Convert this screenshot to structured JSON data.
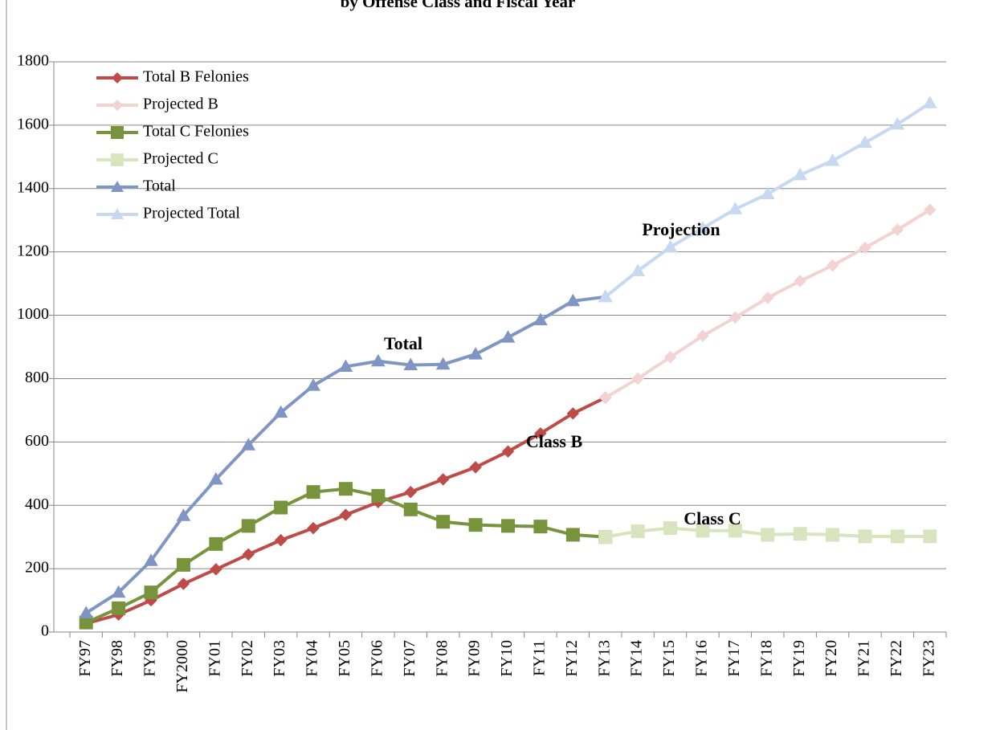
{
  "chart_data": {
    "type": "line",
    "title": "by Offense Class and Fiscal Year",
    "categories": [
      "FY97",
      "FY98",
      "FY99",
      "FY2000",
      "FY01",
      "FY02",
      "FY03",
      "FY04",
      "FY05",
      "FY06",
      "FY07",
      "FY08",
      "FY09",
      "FY10",
      "FY11",
      "FY12",
      "FY13",
      "FY14",
      "FY15",
      "FY16",
      "FY17",
      "FY18",
      "FY19",
      "FY20",
      "FY21",
      "FY22",
      "FY23"
    ],
    "ylim": [
      0,
      1800
    ],
    "yticks": [
      0,
      200,
      400,
      600,
      800,
      1000,
      1200,
      1400,
      1600,
      1800
    ],
    "grid": true,
    "legend": "top-left",
    "series": [
      {
        "name": "Total B Felonies",
        "color": "#be4b48",
        "marker": "diamond",
        "values": [
          27,
          55,
          100,
          152,
          198,
          245,
          290,
          328,
          370,
          410,
          442,
          482,
          520,
          570,
          627,
          690,
          740,
          null,
          null,
          null,
          null,
          null,
          null,
          null,
          null,
          null,
          null
        ]
      },
      {
        "name": "Projected B",
        "color": "#f2d3d2",
        "marker": "diamond",
        "values": [
          null,
          null,
          null,
          null,
          null,
          null,
          null,
          null,
          null,
          null,
          null,
          null,
          null,
          null,
          null,
          null,
          740,
          800,
          868,
          935,
          993,
          1055,
          1108,
          1157,
          1213,
          1270,
          1333
        ]
      },
      {
        "name": "Total C Felonies",
        "color": "#77933c",
        "marker": "square",
        "values": [
          30,
          75,
          125,
          212,
          278,
          335,
          393,
          442,
          452,
          430,
          387,
          348,
          338,
          335,
          333,
          307,
          300,
          null,
          null,
          null,
          null,
          null,
          null,
          null,
          null,
          null,
          null
        ]
      },
      {
        "name": "Projected C",
        "color": "#d7e4bd",
        "marker": "square",
        "values": [
          null,
          null,
          null,
          null,
          null,
          null,
          null,
          null,
          null,
          null,
          null,
          null,
          null,
          null,
          null,
          null,
          300,
          318,
          328,
          320,
          320,
          307,
          310,
          307,
          302,
          302,
          302
        ]
      },
      {
        "name": "Total",
        "color": "#7f96c4",
        "marker": "triangle",
        "values": [
          60,
          125,
          225,
          367,
          482,
          590,
          693,
          778,
          838,
          855,
          843,
          845,
          877,
          930,
          985,
          1045,
          1058,
          null,
          null,
          null,
          null,
          null,
          null,
          null,
          null,
          null,
          null
        ]
      },
      {
        "name": "Projected Total",
        "color": "#c6d9f1",
        "marker": "triangle",
        "values": [
          null,
          null,
          null,
          null,
          null,
          null,
          null,
          null,
          null,
          null,
          null,
          null,
          null,
          null,
          null,
          null,
          1058,
          1140,
          1215,
          1275,
          1335,
          1383,
          1443,
          1488,
          1545,
          1603,
          1670
        ]
      }
    ],
    "annotations": [
      "Total",
      "Projection",
      "Class B",
      "Class C"
    ]
  }
}
